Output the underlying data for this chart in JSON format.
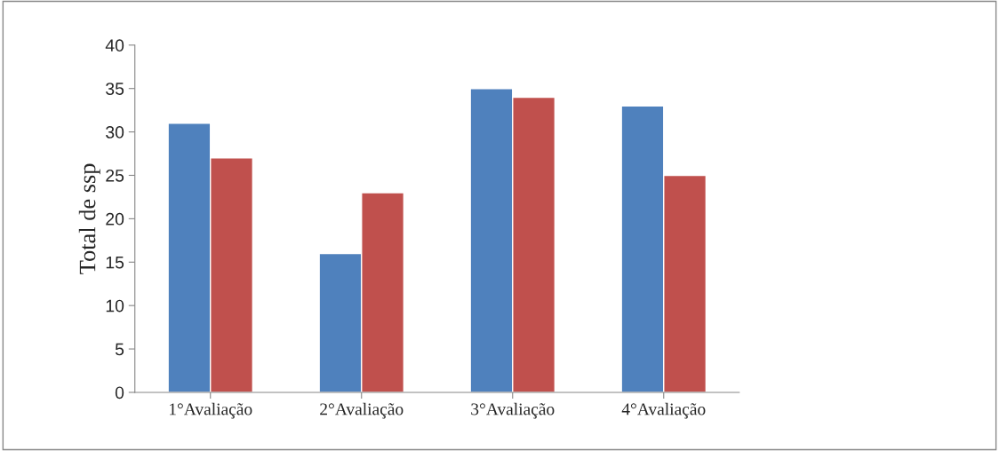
{
  "chart_data": {
    "type": "bar",
    "ylabel": "Total de ssp",
    "categories": [
      "1°Avaliação",
      "2°Avaliação",
      "3°Avaliação",
      "4°Avaliação"
    ],
    "series": [
      {
        "color": "#4f81bd",
        "values": [
          31,
          16,
          35,
          33
        ]
      },
      {
        "color": "#c0504d",
        "values": [
          27,
          23,
          34,
          25
        ]
      }
    ],
    "ylim": [
      0,
      40
    ],
    "yticks": [
      0,
      5,
      10,
      15,
      20,
      25,
      30,
      35,
      40
    ],
    "grid": false
  }
}
